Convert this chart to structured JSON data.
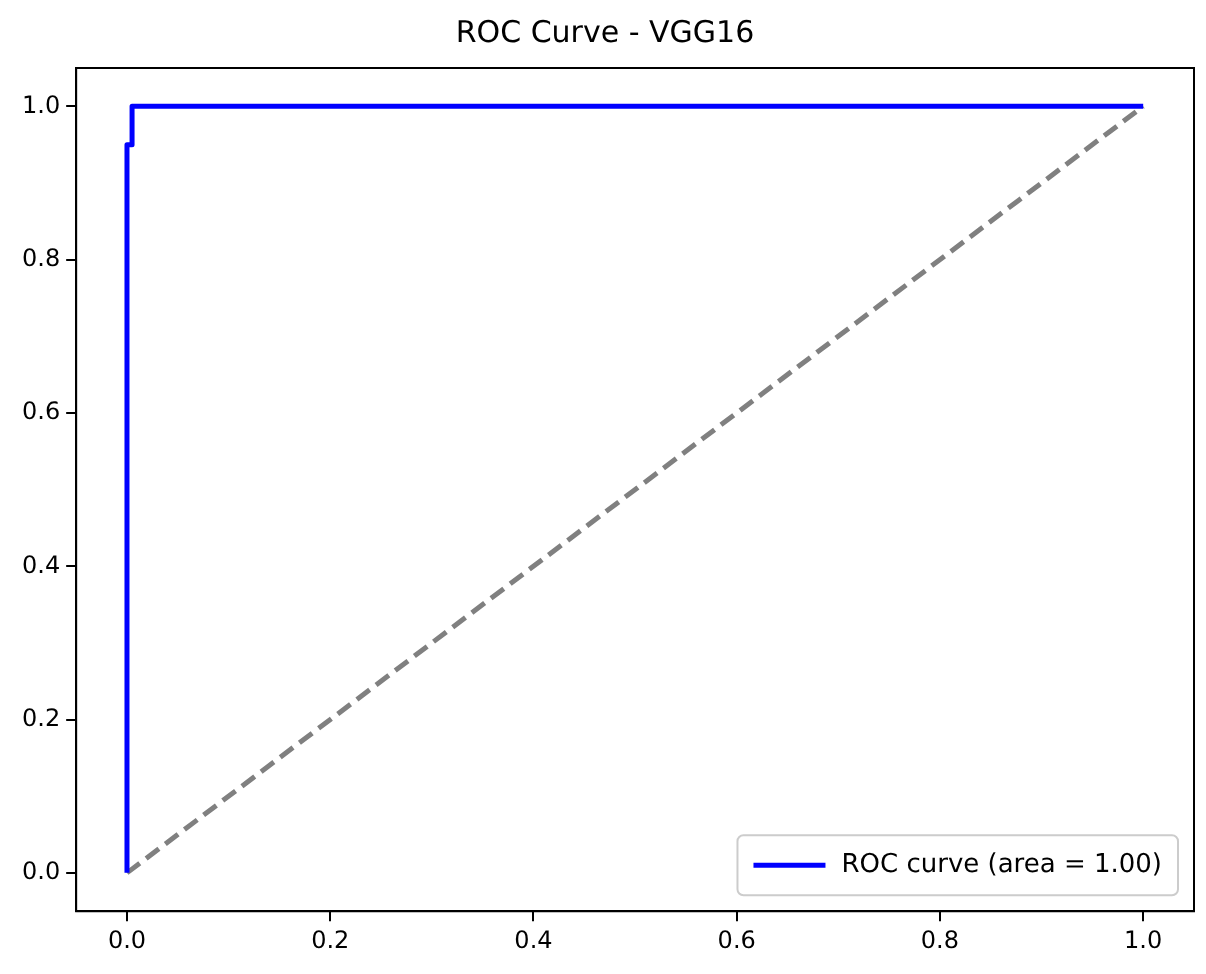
{
  "chart_data": {
    "type": "line",
    "title": "ROC Curve - VGG16",
    "series": [
      {
        "name": "ROC curve (area = 1.00)",
        "color": "#0000ff",
        "x": [
          0,
          0,
          0.005,
          0.005,
          1
        ],
        "values": [
          0,
          0.95,
          0.95,
          1,
          1
        ],
        "line_style": "solid"
      },
      {
        "color": "#808080",
        "x": [
          0,
          1
        ],
        "values": [
          0,
          1
        ],
        "line_style": "dashed"
      }
    ],
    "xlim": [
      -0.05,
      1.05
    ],
    "ylim": [
      -0.05,
      1.05
    ],
    "xticks": [
      {
        "value": 0,
        "label": "0.0"
      },
      {
        "value": 0.2,
        "label": "0.2"
      },
      {
        "value": 0.4,
        "label": "0.4"
      },
      {
        "value": 0.6,
        "label": "0.6"
      },
      {
        "value": 0.8,
        "label": "0.8"
      },
      {
        "value": 1,
        "label": "1.0"
      }
    ],
    "yticks": [
      {
        "value": 0,
        "label": "0.0"
      },
      {
        "value": 0.2,
        "label": "0.2"
      },
      {
        "value": 0.4,
        "label": "0.4"
      },
      {
        "value": 0.6,
        "label": "0.6"
      },
      {
        "value": 0.8,
        "label": "0.8"
      },
      {
        "value": 1,
        "label": "1.0"
      }
    ],
    "grid": false,
    "legend": "bottom right",
    "marker": "none"
  }
}
